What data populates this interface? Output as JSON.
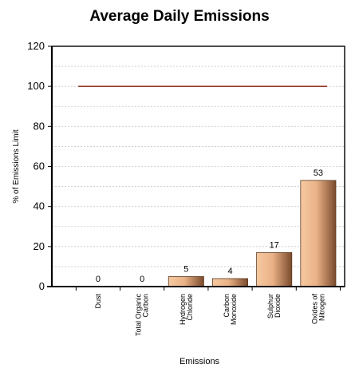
{
  "chart_data": {
    "type": "bar",
    "title": "Average Daily Emissions",
    "xlabel": "Emissions",
    "ylabel": "% of Emissions Limit",
    "ylim": [
      0,
      120
    ],
    "yticks": [
      0,
      20,
      40,
      60,
      80,
      100,
      120
    ],
    "categories": [
      [
        "Dust"
      ],
      [
        "Total Organic",
        "Carbon"
      ],
      [
        "Hydrogen",
        "Chloride"
      ],
      [
        "Carbon",
        "Monoxide"
      ],
      [
        "Sulphur",
        "Dioxide"
      ],
      [
        "Oxides of",
        "Nitrogen"
      ]
    ],
    "values": [
      0,
      0,
      5,
      4,
      17,
      53
    ],
    "limit_line": 100,
    "grid": true,
    "colors": {
      "bar_light": "#f6c9a0",
      "bar_dark": "#7a4a2c",
      "limit_line": "#8b1a10",
      "grid": "#c8c8c8"
    }
  }
}
